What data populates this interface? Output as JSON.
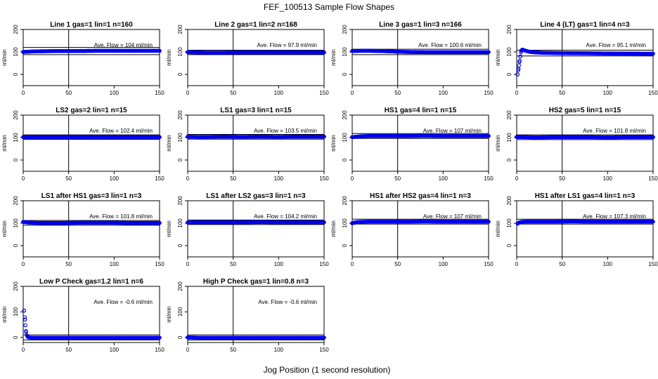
{
  "title": "FEF_100513  Sample Flow Shapes",
  "xlabel": "Jog Position (1 second resolution)",
  "colors": {
    "points": "#0000ee",
    "lines": "#000000"
  },
  "chart_data": [
    {
      "type": "scatter",
      "title": "Line 1 gas=1 lin=1 n=160",
      "ylabel": "ml/min",
      "annotation": "Ave. Flow =  104  ml/min",
      "xlim": [
        0,
        150
      ],
      "ylim": [
        -50,
        200
      ],
      "x_ticks": [
        0,
        50,
        100,
        150
      ],
      "y_ticks": [
        0,
        100,
        200
      ],
      "vline_x": 50,
      "hlines": [
        88,
        120
      ],
      "series": [
        {
          "x": [
            0,
            5,
            10,
            20,
            40,
            60,
            80,
            100,
            120,
            150
          ],
          "y": [
            100,
            101,
            102,
            103,
            104,
            104,
            105,
            105,
            105,
            105
          ]
        }
      ]
    },
    {
      "type": "scatter",
      "title": "Line 2 gas=1 lin=2 n=168",
      "ylabel": "ml/min",
      "annotation": "Ave. Flow =  97.9  ml/min",
      "xlim": [
        0,
        150
      ],
      "ylim": [
        -50,
        200
      ],
      "x_ticks": [
        0,
        50,
        100,
        150
      ],
      "y_ticks": [
        0,
        100,
        200
      ],
      "vline_x": 50,
      "hlines": [
        88,
        108
      ],
      "series": [
        {
          "x": [
            0,
            10,
            20,
            40,
            60,
            80,
            100,
            120,
            150
          ],
          "y": [
            99,
            98,
            97,
            97,
            98,
            98,
            98,
            98,
            98
          ]
        }
      ]
    },
    {
      "type": "scatter",
      "title": "Line 3 gas=1 lin=3 n=166",
      "ylabel": "ml/min",
      "annotation": "Ave. Flow =  100.6  ml/min",
      "xlim": [
        0,
        150
      ],
      "ylim": [
        -50,
        200
      ],
      "x_ticks": [
        0,
        50,
        100,
        150
      ],
      "y_ticks": [
        0,
        100,
        200
      ],
      "vline_x": 50,
      "hlines": [
        88,
        112
      ],
      "series": [
        {
          "x": [
            0,
            10,
            20,
            30,
            40,
            50,
            60,
            80,
            100,
            120,
            150
          ],
          "y": [
            104,
            105,
            105,
            104,
            103,
            101,
            100,
            99,
            99,
            99,
            99
          ]
        }
      ]
    },
    {
      "type": "scatter",
      "title": "Line 4 (LT) gas=1 lin=4 n=3",
      "ylabel": "ml/min",
      "annotation": "Ave. Flow =  95.1  ml/min",
      "xlim": [
        0,
        150
      ],
      "ylim": [
        -50,
        200
      ],
      "x_ticks": [
        0,
        50,
        100,
        150
      ],
      "y_ticks": [
        0,
        100,
        200
      ],
      "vline_x": 50,
      "hlines": [
        82,
        108
      ],
      "series": [
        {
          "x": [
            1,
            2,
            3,
            4,
            5,
            6,
            8,
            10,
            15,
            20,
            30,
            50,
            80,
            110,
            150
          ],
          "y": [
            0,
            25,
            55,
            80,
            105,
            110,
            108,
            105,
            100,
            98,
            96,
            95,
            94,
            93,
            92
          ]
        }
      ]
    },
    {
      "type": "scatter",
      "title": "LS2 gas=2 lin=1 n=15",
      "ylabel": "ml/min",
      "annotation": "Ave. Flow =  102.4  ml/min",
      "xlim": [
        0,
        150
      ],
      "ylim": [
        -50,
        200
      ],
      "x_ticks": [
        0,
        50,
        100,
        150
      ],
      "y_ticks": [
        0,
        100,
        200
      ],
      "vline_x": 50,
      "hlines": [
        92,
        112
      ],
      "series": [
        {
          "x": [
            0,
            20,
            40,
            60,
            80,
            100,
            120,
            150
          ],
          "y": [
            102,
            102,
            102,
            102,
            103,
            102,
            102,
            102
          ]
        }
      ]
    },
    {
      "type": "scatter",
      "title": "LS1 gas=3 lin=1 n=15",
      "ylabel": "ml/min",
      "annotation": "Ave. Flow =  103.5  ml/min",
      "xlim": [
        0,
        150
      ],
      "ylim": [
        -50,
        200
      ],
      "x_ticks": [
        0,
        50,
        100,
        150
      ],
      "y_ticks": [
        0,
        100,
        200
      ],
      "vline_x": 50,
      "hlines": [
        93,
        114
      ],
      "series": [
        {
          "x": [
            0,
            10,
            20,
            40,
            60,
            80,
            100,
            120,
            150
          ],
          "y": [
            104,
            103,
            103,
            104,
            103,
            104,
            103,
            104,
            104
          ]
        }
      ]
    },
    {
      "type": "scatter",
      "title": "HS1 gas=4 lin=1 n=15",
      "ylabel": "ml/min",
      "annotation": "Ave. Flow =  107  ml/min",
      "xlim": [
        0,
        150
      ],
      "ylim": [
        -50,
        200
      ],
      "x_ticks": [
        0,
        50,
        100,
        150
      ],
      "y_ticks": [
        0,
        100,
        200
      ],
      "vline_x": 50,
      "hlines": [
        96,
        118
      ],
      "series": [
        {
          "x": [
            0,
            5,
            10,
            20,
            40,
            60,
            80,
            100,
            120,
            150
          ],
          "y": [
            102,
            104,
            106,
            107,
            107,
            107,
            108,
            107,
            107,
            107
          ]
        }
      ]
    },
    {
      "type": "scatter",
      "title": "HS2 gas=5 lin=1 n=15",
      "ylabel": "ml/min",
      "annotation": "Ave. Flow =  101.8  ml/min",
      "xlim": [
        0,
        150
      ],
      "ylim": [
        -50,
        200
      ],
      "x_ticks": [
        0,
        50,
        100,
        150
      ],
      "y_ticks": [
        0,
        100,
        200
      ],
      "vline_x": 50,
      "hlines": [
        91,
        112
      ],
      "series": [
        {
          "x": [
            0,
            10,
            20,
            40,
            60,
            80,
            100,
            120,
            150
          ],
          "y": [
            103,
            102,
            101,
            102,
            102,
            102,
            101,
            102,
            102
          ]
        }
      ]
    },
    {
      "type": "scatter",
      "title": "LS1 after HS1 gas=3 lin=1 n=3",
      "ylabel": "ml/min",
      "annotation": "Ave. Flow =  101.8  ml/min",
      "xlim": [
        0,
        150
      ],
      "ylim": [
        -50,
        200
      ],
      "x_ticks": [
        0,
        50,
        100,
        150
      ],
      "y_ticks": [
        0,
        100,
        200
      ],
      "vline_x": 50,
      "hlines": [
        91,
        112
      ],
      "series": [
        {
          "x": [
            0,
            3,
            6,
            10,
            20,
            40,
            60,
            80,
            100,
            120,
            150
          ],
          "y": [
            106,
            104,
            103,
            102,
            101,
            101,
            102,
            102,
            102,
            101,
            101
          ]
        }
      ]
    },
    {
      "type": "scatter",
      "title": "LS1 after LS2 gas=3 lin=1 n=3",
      "ylabel": "ml/min",
      "annotation": "Ave. Flow =  104.2  ml/min",
      "xlim": [
        0,
        150
      ],
      "ylim": [
        -50,
        200
      ],
      "x_ticks": [
        0,
        50,
        100,
        150
      ],
      "y_ticks": [
        0,
        100,
        200
      ],
      "vline_x": 50,
      "hlines": [
        94,
        114
      ],
      "series": [
        {
          "x": [
            0,
            10,
            20,
            40,
            60,
            80,
            100,
            120,
            150
          ],
          "y": [
            103,
            104,
            104,
            104,
            104,
            105,
            104,
            104,
            104
          ]
        }
      ]
    },
    {
      "type": "scatter",
      "title": "HS1 after HS2 gas=4 lin=1 n=3",
      "ylabel": "ml/min",
      "annotation": "Ave. Flow =  107  ml/min",
      "xlim": [
        0,
        150
      ],
      "ylim": [
        -50,
        200
      ],
      "x_ticks": [
        0,
        50,
        100,
        150
      ],
      "y_ticks": [
        0,
        100,
        200
      ],
      "vline_x": 50,
      "hlines": [
        96,
        118
      ],
      "series": [
        {
          "x": [
            0,
            3,
            6,
            10,
            20,
            40,
            60,
            80,
            100,
            120,
            150
          ],
          "y": [
            100,
            103,
            105,
            106,
            107,
            107,
            107,
            108,
            107,
            107,
            107
          ]
        }
      ]
    },
    {
      "type": "scatter",
      "title": "HS1 after LS1 gas=4 lin=1 n=3",
      "ylabel": "ml/min",
      "annotation": "Ave. Flow =  107.3  ml/min",
      "xlim": [
        0,
        150
      ],
      "ylim": [
        -50,
        200
      ],
      "x_ticks": [
        0,
        50,
        100,
        150
      ],
      "y_ticks": [
        0,
        100,
        200
      ],
      "vline_x": 50,
      "hlines": [
        96,
        118
      ],
      "series": [
        {
          "x": [
            1,
            3,
            6,
            10,
            20,
            40,
            60,
            80,
            100,
            120,
            150
          ],
          "y": [
            98,
            104,
            106,
            107,
            107,
            107,
            108,
            107,
            107,
            107,
            107
          ]
        }
      ]
    },
    {
      "type": "scatter",
      "title": "Low P Check gas=1.2 lin=1 n=6",
      "ylabel": "ml/min",
      "annotation": "Ave. Flow =  -0.6  ml/min",
      "xlim": [
        0,
        150
      ],
      "ylim": [
        -20,
        200
      ],
      "x_ticks": [
        0,
        50,
        100,
        150
      ],
      "y_ticks": [
        0,
        100,
        200
      ],
      "vline_x": 50,
      "hlines": [
        -10,
        10
      ],
      "series": [
        {
          "x": [
            1,
            2,
            3,
            4,
            5,
            6,
            8,
            10,
            20,
            40,
            60,
            80,
            100,
            120,
            150
          ],
          "y": [
            105,
            70,
            25,
            8,
            2,
            0,
            -1,
            -1,
            -1,
            -1,
            -1,
            -1,
            -1,
            -1,
            -1
          ]
        }
      ]
    },
    {
      "type": "scatter",
      "title": "High P Check gas=1 lin=0.8 n=3",
      "ylabel": "ml/min",
      "annotation": "Ave. Flow =  -0.6  ml/min",
      "xlim": [
        0,
        150
      ],
      "ylim": [
        -20,
        200
      ],
      "x_ticks": [
        0,
        50,
        100,
        150
      ],
      "y_ticks": [
        0,
        100,
        200
      ],
      "vline_x": 50,
      "hlines": [
        -10,
        10
      ],
      "series": [
        {
          "x": [
            0,
            10,
            20,
            40,
            60,
            80,
            100,
            120,
            150
          ],
          "y": [
            0,
            -1,
            -1,
            -1,
            -1,
            -1,
            -1,
            -1,
            -1
          ]
        }
      ]
    }
  ]
}
